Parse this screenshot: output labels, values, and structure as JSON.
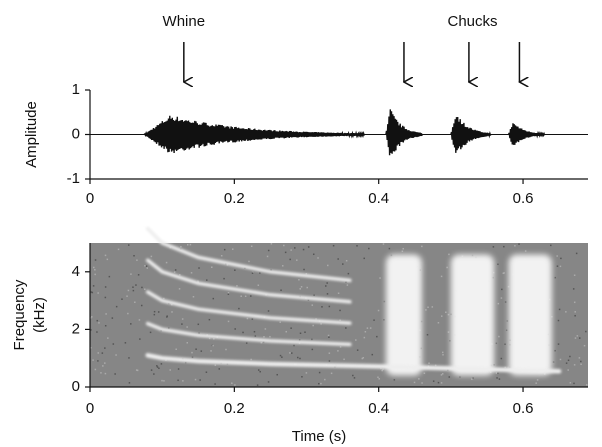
{
  "chart_data": [
    {
      "type": "waveform",
      "ylabel": "Amplitude",
      "xlim": [
        0,
        0.69
      ],
      "ylim": [
        -1,
        1
      ],
      "xticks": [
        0,
        0.2,
        0.4,
        0.6
      ],
      "yticks": [
        -1,
        0,
        1
      ],
      "annotations": [
        {
          "text": "Whine",
          "x": 0.13
        },
        {
          "text": "Chucks",
          "x": 0.53
        }
      ],
      "arrows": [
        0.13,
        0.435,
        0.525,
        0.595
      ],
      "events": [
        {
          "start": 0.075,
          "end": 0.38,
          "amplitude": 0.45
        },
        {
          "start": 0.41,
          "end": 0.46,
          "amplitude": 0.6
        },
        {
          "start": 0.5,
          "end": 0.555,
          "amplitude": 0.52
        },
        {
          "start": 0.58,
          "end": 0.63,
          "amplitude": 0.3
        }
      ]
    },
    {
      "type": "spectrogram",
      "ylabel": [
        "Frequency",
        "(kHz)"
      ],
      "xlabel": "Time (s)",
      "xlim": [
        0,
        0.69
      ],
      "ylim": [
        0,
        5
      ],
      "xticks": [
        0,
        0.2,
        0.4,
        0.6
      ],
      "yticks": [
        0,
        2,
        4
      ],
      "f0": {
        "x": [
          0.08,
          0.1,
          0.15,
          0.25,
          0.36,
          0.65
        ],
        "values": [
          1.1,
          1.0,
          0.9,
          0.8,
          0.74,
          0.55
        ]
      },
      "harmonics": 5,
      "harmonics_until": 0.36,
      "chucks": [
        {
          "start": 0.41,
          "end": 0.46
        },
        {
          "start": 0.5,
          "end": 0.56
        },
        {
          "start": 0.58,
          "end": 0.64
        }
      ],
      "chuck_band": [
        0.4,
        4.6
      ]
    }
  ]
}
